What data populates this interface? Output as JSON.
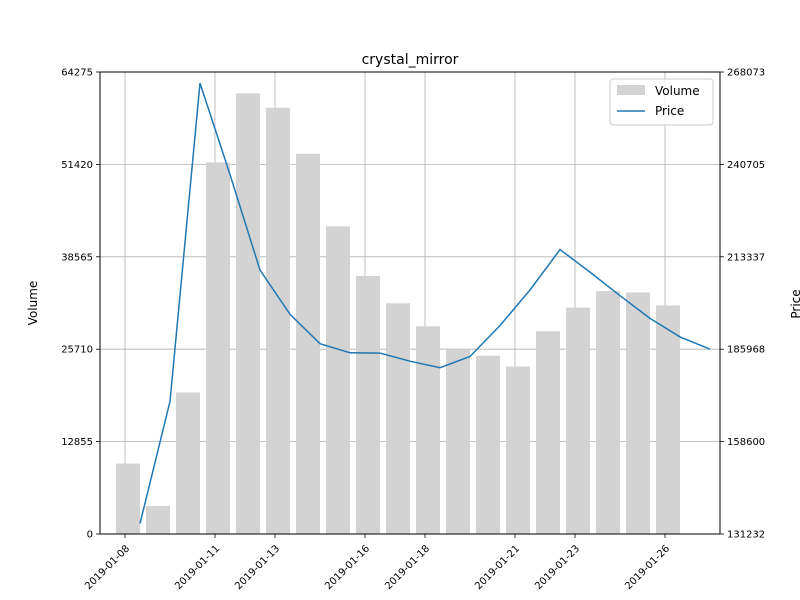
{
  "chart_data": {
    "type": "bar+line",
    "title": "crystal_mirror",
    "xlabel": "",
    "ylabel_left": "Volume",
    "ylabel_right": "Price",
    "dates": [
      "2019-01-08",
      "2019-01-09",
      "2019-01-10",
      "2019-01-11",
      "2019-01-12",
      "2019-01-13",
      "2019-01-14",
      "2019-01-15",
      "2019-01-16",
      "2019-01-17",
      "2019-01-18",
      "2019-01-19",
      "2019-01-20",
      "2019-01-21",
      "2019-01-22",
      "2019-01-23",
      "2019-01-24",
      "2019-01-25",
      "2019-01-26",
      "2019-01-27"
    ],
    "x_tick_labels": [
      "2019-01-08",
      "2019-01-11",
      "2019-01-13",
      "2019-01-16",
      "2019-01-18",
      "2019-01-21",
      "2019-01-23",
      "2019-01-26"
    ],
    "series": [
      {
        "name": "Volume",
        "axis": "left",
        "kind": "bar",
        "color": "#d3d3d3",
        "values": [
          9800,
          3900,
          19700,
          51700,
          61300,
          59300,
          52900,
          42800,
          35900,
          32100,
          28900,
          25700,
          24800,
          23300,
          28200,
          31500,
          33800,
          33600,
          31800,
          0
        ]
      },
      {
        "name": "Price",
        "axis": "right",
        "kind": "line",
        "color": "#1f77b4",
        "values": [
          134300,
          170500,
          264800,
          237700,
          209400,
          196300,
          187600,
          184900,
          184800,
          182400,
          180500,
          183800,
          193000,
          203500,
          215500,
          208800,
          201800,
          195100,
          189600,
          185968
        ]
      }
    ],
    "ylim_left": [
      0,
      64275
    ],
    "yticks_left": [
      "0",
      "12855",
      "25710",
      "38565",
      "51420",
      "64275"
    ],
    "ylim_right": [
      131232,
      268073
    ],
    "yticks_right": [
      "131232",
      "158600",
      "185968",
      "213337",
      "240705",
      "268073"
    ],
    "grid": true,
    "legend_position": "top-right"
  }
}
